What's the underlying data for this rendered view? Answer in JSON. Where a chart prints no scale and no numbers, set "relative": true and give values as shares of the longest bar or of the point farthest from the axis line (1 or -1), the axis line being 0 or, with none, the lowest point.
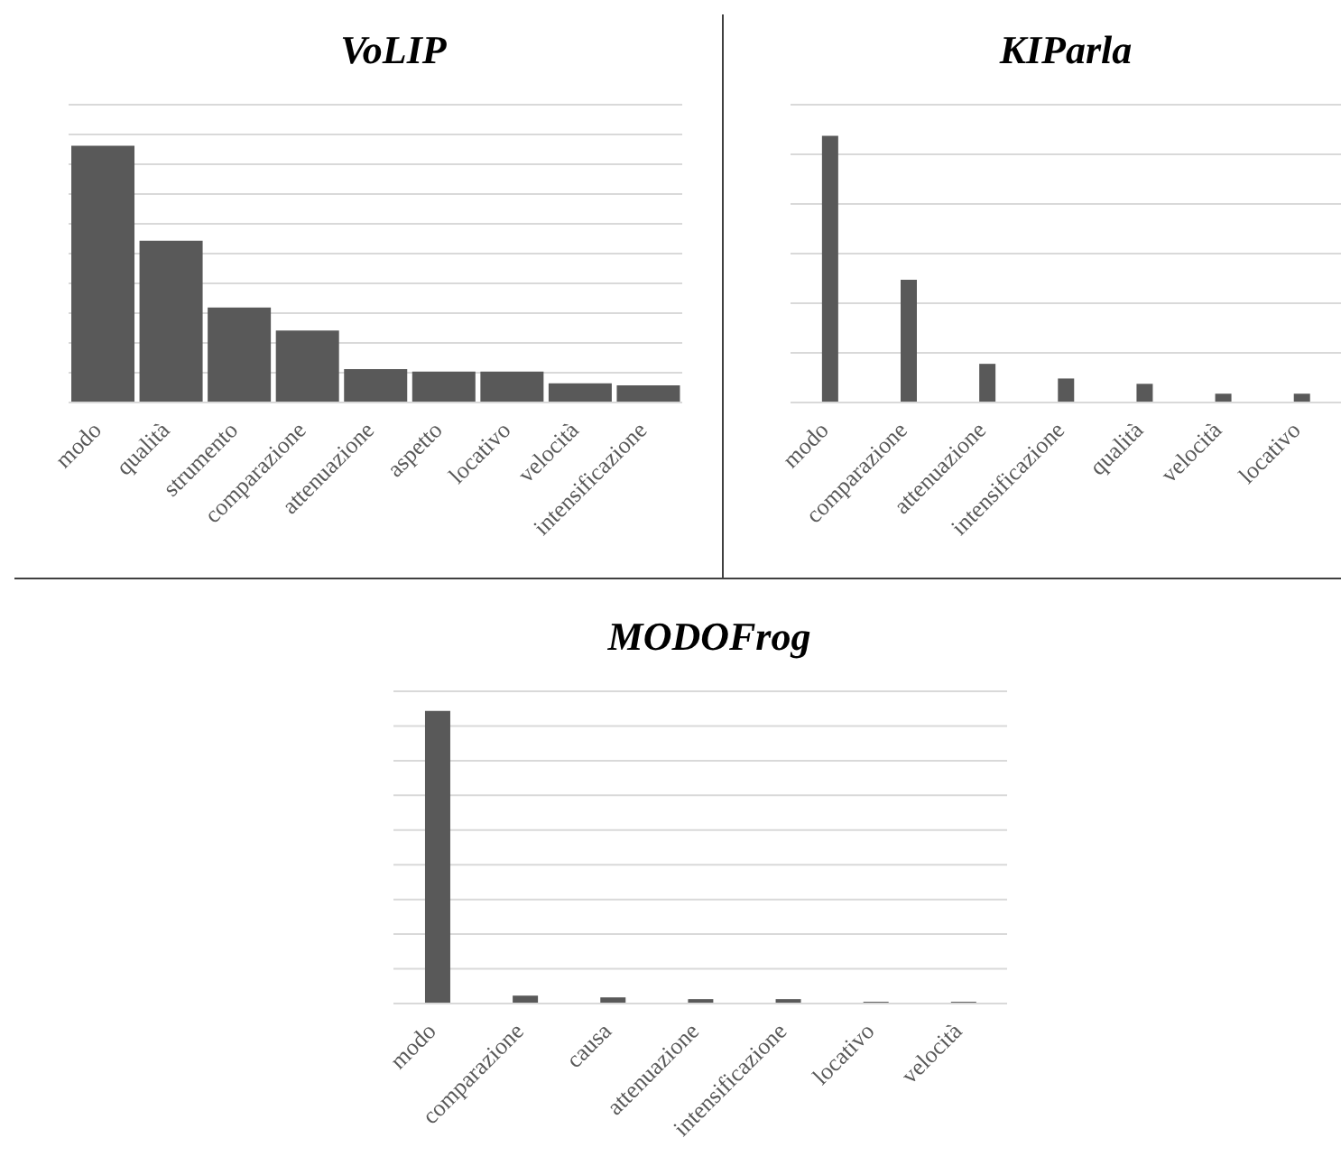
{
  "chart_data": [
    {
      "type": "bar",
      "title": "VoLIP",
      "relative": true,
      "grid": "y",
      "color": "#595959",
      "categories": [
        "modo",
        "qualità",
        "strumento",
        "comparazione",
        "attenuazione",
        "aspetto",
        "locativo",
        "velocità",
        "intensificazione"
      ],
      "values": [
        1,
        0.63,
        0.37,
        0.28,
        0.13,
        0.12,
        0.12,
        0.075,
        0.067
      ]
    },
    {
      "type": "bar",
      "title": "KIParla",
      "relative": true,
      "grid": "y",
      "color": "#595959",
      "categories": [
        "modo",
        "comparazione",
        "attenuazione",
        "intensificazione",
        "qualità",
        "velocità",
        "locativo"
      ],
      "values": [
        1,
        0.46,
        0.145,
        0.09,
        0.07,
        0.033,
        0.033
      ]
    },
    {
      "type": "bar",
      "title": "MODOFrog",
      "relative": true,
      "grid": "y",
      "color": "#595959",
      "categories": [
        "modo",
        "comparazione",
        "causa",
        "attenuazione",
        "intensificazione",
        "locativo",
        "velocità"
      ],
      "values": [
        1,
        0.027,
        0.021,
        0.015,
        0.015,
        0.006,
        0.006
      ]
    }
  ]
}
